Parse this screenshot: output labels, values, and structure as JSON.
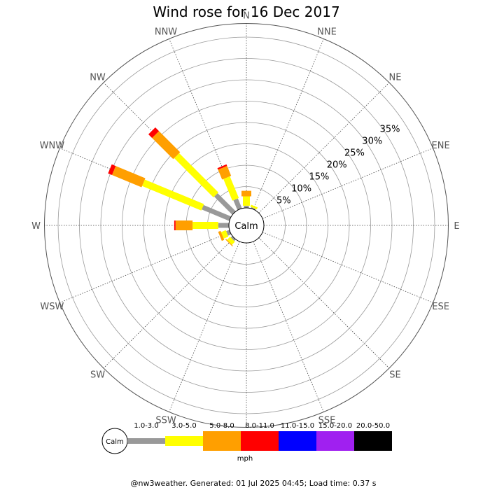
{
  "chart_data": {
    "type": "wind-rose",
    "title": "Wind rose for 16 Dec 2017",
    "directions": [
      "N",
      "NNE",
      "NE",
      "ENE",
      "E",
      "ESE",
      "SE",
      "SSE",
      "S",
      "SSW",
      "SW",
      "WSW",
      "W",
      "WNW",
      "NW",
      "NNW"
    ],
    "radial_ticks": [
      "5%",
      "10%",
      "15%",
      "20%",
      "25%",
      "30%",
      "35%"
    ],
    "radial_max": 35,
    "calm_label": "Calm",
    "unit_label": "mph",
    "bins": [
      {
        "label": "1.0-3.0",
        "color": "#999999"
      },
      {
        "label": "3.0-5.0",
        "color": "#ffff00"
      },
      {
        "label": "5.0-8.0",
        "color": "#ff9f00"
      },
      {
        "label": "8.0-11.0",
        "color": "#ff0000"
      },
      {
        "label": "11.0-15.0",
        "color": "#0000ff"
      },
      {
        "label": "15.0-20.0",
        "color": "#a020f0"
      },
      {
        "label": "20.0-50.0",
        "color": "#000000"
      }
    ],
    "series": [
      {
        "direction": "N",
        "values": [
          0.5,
          2.2,
          1.3,
          0,
          0,
          0,
          0
        ]
      },
      {
        "direction": "NNE",
        "values": [
          0.3,
          0.5,
          0,
          0,
          0,
          0,
          0
        ]
      },
      {
        "direction": "NE",
        "values": [
          0,
          0,
          0,
          0,
          0,
          0,
          0
        ]
      },
      {
        "direction": "ENE",
        "values": [
          0,
          0,
          0,
          0,
          0,
          0,
          0
        ]
      },
      {
        "direction": "E",
        "values": [
          0,
          0,
          0,
          0,
          0,
          0,
          0
        ]
      },
      {
        "direction": "ESE",
        "values": [
          0,
          0,
          0,
          0,
          0,
          0,
          0
        ]
      },
      {
        "direction": "SE",
        "values": [
          0,
          0,
          0,
          0,
          0,
          0,
          0
        ]
      },
      {
        "direction": "SSE",
        "values": [
          0,
          0,
          0,
          0,
          0,
          0,
          0
        ]
      },
      {
        "direction": "S",
        "values": [
          0,
          0,
          0,
          0,
          0,
          0,
          0
        ]
      },
      {
        "direction": "SSW",
        "values": [
          0,
          0,
          0,
          0,
          0,
          0,
          0
        ]
      },
      {
        "direction": "SW",
        "values": [
          0.5,
          1.0,
          0.2,
          0,
          0,
          0,
          0
        ]
      },
      {
        "direction": "WSW",
        "values": [
          0.8,
          1.2,
          0.6,
          0,
          0,
          0,
          0
        ]
      },
      {
        "direction": "W",
        "values": [
          2.5,
          6.0,
          4.0,
          0.3,
          0,
          0,
          0
        ]
      },
      {
        "direction": "WNW",
        "values": [
          7.0,
          15.0,
          7.5,
          1.0,
          0,
          0,
          0
        ]
      },
      {
        "direction": "NW",
        "values": [
          6.0,
          13.0,
          7.0,
          1.2,
          0,
          0,
          0
        ]
      },
      {
        "direction": "NNW",
        "values": [
          2.5,
          5.5,
          2.5,
          0.4,
          0,
          0,
          0
        ]
      }
    ]
  },
  "footer": "@nw3weather. Generated: 01 Jul 2025 04:45; Load time: 0.37 s"
}
